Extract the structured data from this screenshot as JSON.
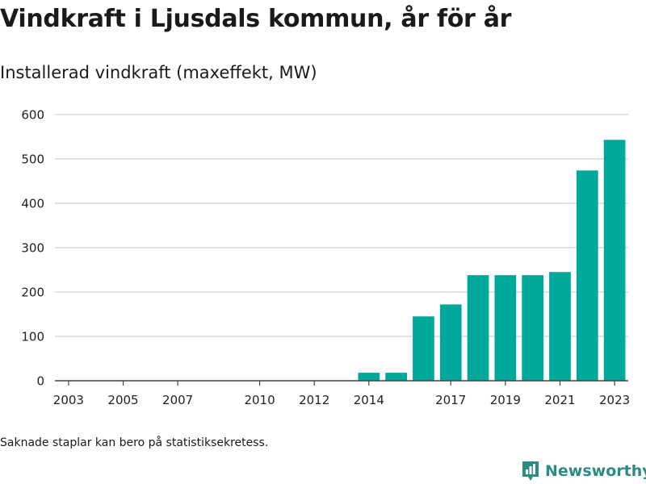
{
  "title": "Vindkraft i Ljusdals kommun, år för år",
  "subtitle": "Installerad vindkraft (maxeffekt, MW)",
  "footnote": "Saknade staplar kan bero på statistiksekretess.",
  "brand": {
    "name": "Newsworthy",
    "icon": "bar-chart-logo-icon",
    "color": "#2b8c7f"
  },
  "colors": {
    "bar": "#00a89c",
    "grid": "#d9d9d9",
    "axis": "#444444"
  },
  "chart_data": {
    "type": "bar",
    "title": "Vindkraft i Ljusdals kommun, år för år",
    "subtitle": "Installerad vindkraft (maxeffekt, MW)",
    "xlabel": "",
    "ylabel": "",
    "categories": [
      2003,
      2004,
      2005,
      2006,
      2007,
      2008,
      2009,
      2010,
      2011,
      2012,
      2013,
      2014,
      2015,
      2016,
      2017,
      2018,
      2019,
      2020,
      2021,
      2022,
      2023
    ],
    "values": [
      0,
      0,
      0,
      0,
      0,
      0,
      0,
      0,
      0,
      0,
      0,
      18,
      18,
      145,
      172,
      238,
      238,
      238,
      245,
      474,
      543
    ],
    "x_tick_labels": [
      "2003",
      "2005",
      "2007",
      "2010",
      "2012",
      "2014",
      "2017",
      "2019",
      "2021",
      "2023"
    ],
    "y_ticks": [
      0,
      100,
      200,
      300,
      400,
      500,
      600
    ],
    "ylim": [
      0,
      600
    ],
    "grid": true,
    "legend": "none"
  }
}
